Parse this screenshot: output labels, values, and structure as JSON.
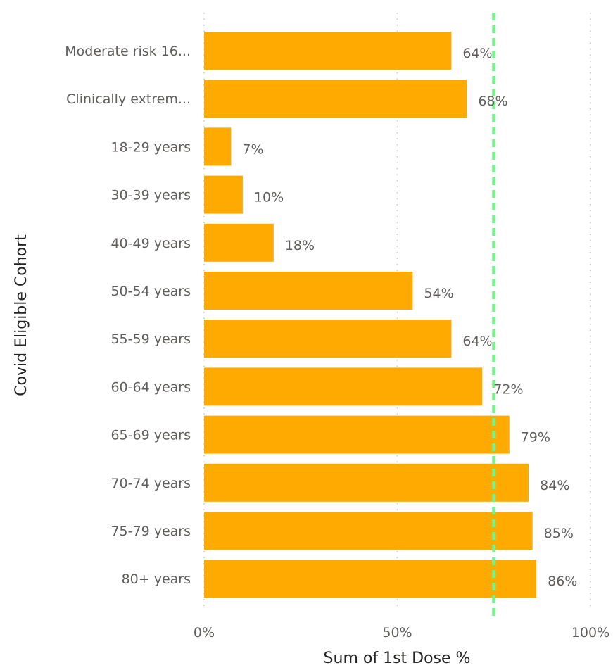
{
  "chart_data": {
    "type": "bar",
    "orientation": "horizontal",
    "categories": [
      "Moderate risk 16...",
      "Clinically extrem...",
      "18-29 years",
      "30-39 years",
      "40-49 years",
      "50-54 years",
      "55-59 years",
      "60-64 years",
      "65-69 years",
      "70-74 years",
      "75-79 years",
      "80+ years"
    ],
    "values": [
      64,
      68,
      7,
      10,
      18,
      54,
      64,
      72,
      79,
      84,
      85,
      86
    ],
    "value_labels": [
      "64%",
      "68%",
      "7%",
      "10%",
      "18%",
      "54%",
      "64%",
      "72%",
      "79%",
      "84%",
      "85%",
      "86%"
    ],
    "xlabel": "Sum of 1st Dose %",
    "ylabel": "Covid Eligible Cohort",
    "xlim": [
      0,
      100
    ],
    "xticks": [
      0,
      50,
      100
    ],
    "xtick_labels": [
      "0%",
      "50%",
      "100%"
    ],
    "grid": true,
    "reference_line": {
      "value": 75,
      "style": "dashed"
    },
    "colors": {
      "bar": "#FFAA00",
      "reference_line": "#7CF08E"
    }
  }
}
